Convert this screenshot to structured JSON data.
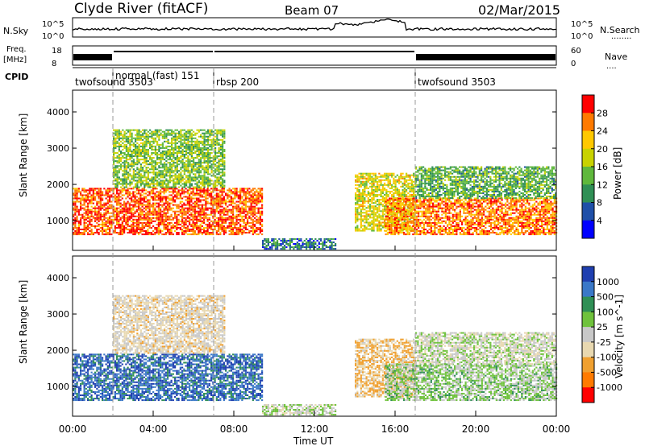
{
  "header": {
    "station": "Clyde River (fitACF)",
    "beam": "Beam 07",
    "date": "02/Mar/2015"
  },
  "strips": {
    "nsky_label": "N.Sky",
    "nsky_ticks": [
      "10^5",
      "10^0"
    ],
    "nsky_right_ticks": [
      "10^5",
      "10^0"
    ],
    "nsearch_label": "N.Search",
    "nsearch_dots": "........",
    "freq_label": "Freq.",
    "freq_unit": "[MHz]",
    "freq_ticks": [
      "18",
      "8"
    ],
    "nave_ticks": [
      "60",
      "0"
    ],
    "nave_label": "Nave",
    "nave_dots": "....",
    "cpid_label": "CPID",
    "modes": [
      {
        "name": "twofsound 3503",
        "start": 0.0,
        "end": 2.0
      },
      {
        "name": "normal (fast) 151",
        "start": 2.0,
        "end": 7.0
      },
      {
        "name": "rbsp 200",
        "start": 7.0,
        "end": 17.0
      },
      {
        "name": "twofsound 3503",
        "start": 17.0,
        "end": 24.0
      }
    ]
  },
  "power_panel": {
    "ylabel": "Slant Range [km]",
    "yticks": [
      "4000",
      "3000",
      "2000",
      "1000"
    ],
    "colorbar_label": "Power [dB]",
    "colorbar_ticks": [
      "28",
      "24",
      "20",
      "16",
      "12",
      "8",
      "4"
    ],
    "colorbar_colors": [
      "#ff0000",
      "#ff7a00",
      "#ffc800",
      "#c8d200",
      "#5fb83c",
      "#2f8f55",
      "#1f4fa8",
      "#0000ff"
    ]
  },
  "velocity_panel": {
    "ylabel": "Slant Range [km]",
    "yticks": [
      "4000",
      "3000",
      "2000",
      "1000"
    ],
    "colorbar_label": "Velocity [m s^-1]",
    "colorbar_ticks": [
      "1000",
      "500",
      "100",
      "25",
      "-25",
      "-100",
      "-500",
      "-1000"
    ],
    "colorbar_colors": [
      "#1f3fb0",
      "#3a78c8",
      "#2f8f55",
      "#6fc23c",
      "#c8c8c8",
      "#e8d8b0",
      "#f0a030",
      "#ff7a00",
      "#ff0000"
    ]
  },
  "xaxis": {
    "label": "Time UT",
    "ticks": [
      "00:00",
      "04:00",
      "08:00",
      "12:00",
      "16:00",
      "20:00",
      "00:00"
    ]
  },
  "chart_data": {
    "type": "heatmap",
    "title": "Clyde River (fitACF)  Beam 07  02/Mar/2015",
    "xlabel": "Time UT",
    "ylabel": "Slant Range [km]",
    "xlim_hours": [
      0,
      24
    ],
    "ylim_km": [
      180,
      4600
    ],
    "power_scale_db": [
      0,
      30
    ],
    "velocity_scale_ms": [
      -1000,
      1000
    ],
    "echo_regions": [
      {
        "start_h": 0.0,
        "end_h": 9.4,
        "range_km": [
          600,
          1900
        ],
        "power_db": 26,
        "velocity_ms": 700
      },
      {
        "start_h": 2.0,
        "end_h": 7.5,
        "range_km": [
          1900,
          3500
        ],
        "power_db": 14,
        "velocity_ms": -150
      },
      {
        "start_h": 9.4,
        "end_h": 13.0,
        "range_km": [
          200,
          500
        ],
        "power_db": 8,
        "velocity_ms": 20
      },
      {
        "start_h": 14.0,
        "end_h": 17.0,
        "range_km": [
          700,
          2300
        ],
        "power_db": 18,
        "velocity_ms": -300
      },
      {
        "start_h": 15.5,
        "end_h": 24.0,
        "range_km": [
          600,
          1600
        ],
        "power_db": 24,
        "velocity_ms": 150
      },
      {
        "start_h": 17.0,
        "end_h": 24.0,
        "range_km": [
          1600,
          2500
        ],
        "power_db": 12,
        "velocity_ms": 0
      }
    ]
  }
}
